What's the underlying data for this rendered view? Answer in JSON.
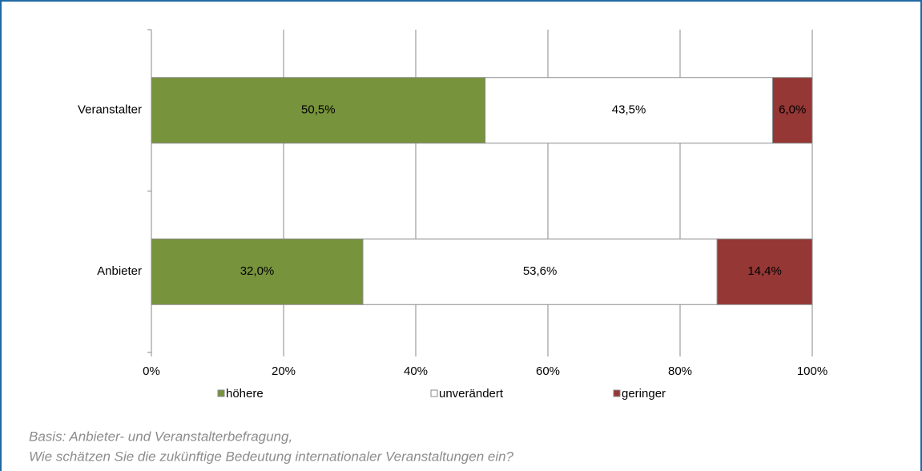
{
  "chart_data": {
    "type": "stacked-bar-horizontal",
    "categories": [
      "Veranstalter",
      "Anbieter"
    ],
    "series": [
      {
        "name": "höhere",
        "color": "#77933c",
        "values": [
          50.5,
          32.0
        ],
        "value_labels": [
          "50,5%",
          "32,0%"
        ]
      },
      {
        "name": "unverändert",
        "color": "#ffffff",
        "values": [
          43.5,
          53.6
        ],
        "value_labels": [
          "43,5%",
          "53,6%"
        ]
      },
      {
        "name": "geringer",
        "color": "#953735",
        "values": [
          6.0,
          14.4
        ],
        "value_labels": [
          "6,0%",
          "14,4%"
        ]
      }
    ],
    "xlim": [
      0,
      100
    ],
    "xticks": [
      {
        "value": 0,
        "label": "0%"
      },
      {
        "value": 20,
        "label": "20%"
      },
      {
        "value": 40,
        "label": "40%"
      },
      {
        "value": 60,
        "label": "60%"
      },
      {
        "value": 80,
        "label": "80%"
      },
      {
        "value": 100,
        "label": "100%"
      }
    ],
    "grid": true,
    "legend": "bottom",
    "footnote": [
      "Basis: Anbieter- und Veranstalterbefragung,",
      "Wie schätzen Sie die zukünftige Bedeutung internationaler Veranstaltungen ein?"
    ]
  }
}
